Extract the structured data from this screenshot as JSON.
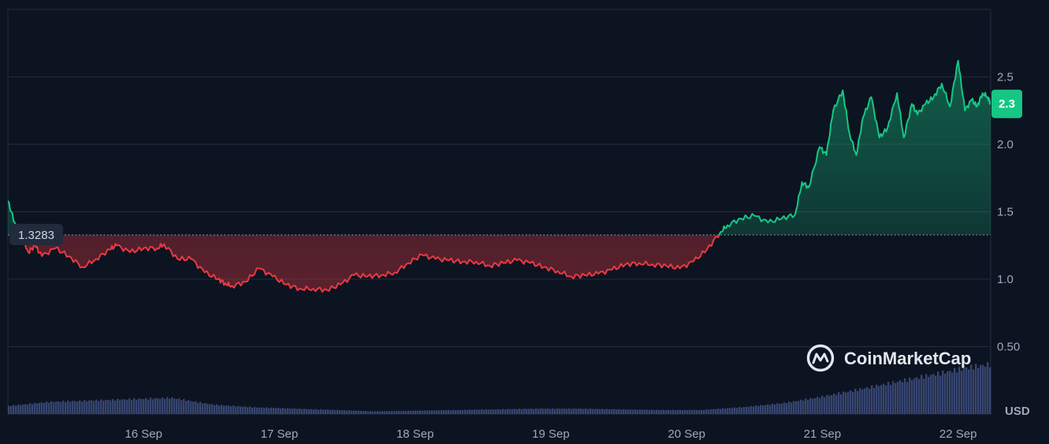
{
  "watermark": {
    "label": "CoinMarketCap"
  },
  "currency_label": "USD",
  "chart_data": {
    "type": "area",
    "y_ticks": [
      {
        "value": 0.5,
        "label": "0.50"
      },
      {
        "value": 1.0,
        "label": "1.0"
      },
      {
        "value": 1.5,
        "label": "1.5"
      },
      {
        "value": 2.0,
        "label": "2.0"
      },
      {
        "value": 2.5,
        "label": "2.5"
      }
    ],
    "x_ticks": [
      {
        "value": 1.0,
        "label": "16 Sep"
      },
      {
        "value": 2.0,
        "label": "17 Sep"
      },
      {
        "value": 3.0,
        "label": "18 Sep"
      },
      {
        "value": 4.0,
        "label": "19 Sep"
      },
      {
        "value": 5.0,
        "label": "20 Sep"
      },
      {
        "value": 6.0,
        "label": "21 Sep"
      },
      {
        "value": 7.0,
        "label": "22 Sep"
      }
    ],
    "ylim": [
      0.0,
      3.0
    ],
    "xlim": [
      0.0,
      7.24
    ],
    "baseline": {
      "value": 1.3283,
      "label": "1.3283"
    },
    "last_price": {
      "value": 2.3,
      "label": "2.3"
    },
    "colors": {
      "up": "#16c784",
      "down": "#ea3943",
      "volume": "#3b4a7a",
      "grid": "#232b3e",
      "badge_up": "#16c784"
    },
    "price": {
      "x": [
        0.0,
        0.05,
        0.1,
        0.15,
        0.2,
        0.25,
        0.35,
        0.45,
        0.55,
        0.65,
        0.75,
        0.8,
        0.9,
        1.0,
        1.1,
        1.15,
        1.25,
        1.35,
        1.45,
        1.55,
        1.6,
        1.65,
        1.75,
        1.85,
        1.95,
        2.05,
        2.15,
        2.25,
        2.35,
        2.45,
        2.55,
        2.65,
        2.75,
        2.85,
        2.95,
        3.05,
        3.15,
        3.25,
        3.35,
        3.45,
        3.55,
        3.65,
        3.75,
        3.85,
        3.95,
        4.05,
        4.15,
        4.25,
        4.35,
        4.45,
        4.55,
        4.65,
        4.75,
        4.85,
        4.95,
        5.05,
        5.15,
        5.25,
        5.3,
        5.4,
        5.5,
        5.6,
        5.7,
        5.8,
        5.85,
        5.9,
        5.98,
        6.03,
        6.08,
        6.15,
        6.2,
        6.25,
        6.3,
        6.36,
        6.42,
        6.48,
        6.55,
        6.6,
        6.66,
        6.7,
        6.76,
        6.82,
        6.88,
        6.94,
        7.0,
        7.05,
        7.1,
        7.14,
        7.18,
        7.22,
        7.24
      ],
      "y": [
        1.58,
        1.42,
        1.33,
        1.2,
        1.25,
        1.17,
        1.23,
        1.17,
        1.09,
        1.15,
        1.22,
        1.25,
        1.2,
        1.23,
        1.23,
        1.26,
        1.15,
        1.15,
        1.05,
        1.0,
        0.97,
        0.95,
        0.98,
        1.08,
        1.02,
        0.96,
        0.93,
        0.93,
        0.92,
        0.96,
        1.03,
        1.02,
        1.03,
        1.05,
        1.12,
        1.18,
        1.15,
        1.14,
        1.13,
        1.13,
        1.1,
        1.12,
        1.14,
        1.12,
        1.09,
        1.06,
        1.02,
        1.03,
        1.04,
        1.07,
        1.11,
        1.12,
        1.11,
        1.1,
        1.08,
        1.13,
        1.22,
        1.35,
        1.4,
        1.45,
        1.47,
        1.42,
        1.45,
        1.48,
        1.72,
        1.68,
        1.98,
        1.92,
        2.25,
        2.4,
        2.08,
        1.92,
        2.2,
        2.35,
        2.05,
        2.12,
        2.38,
        2.05,
        2.3,
        2.22,
        2.3,
        2.35,
        2.45,
        2.28,
        2.62,
        2.25,
        2.33,
        2.28,
        2.38,
        2.35,
        2.3
      ]
    },
    "volume": {
      "x": [
        0.0,
        0.3,
        0.6,
        0.9,
        1.2,
        1.5,
        1.8,
        2.1,
        2.4,
        2.7,
        3.0,
        3.3,
        3.6,
        3.9,
        4.2,
        4.5,
        4.8,
        5.1,
        5.4,
        5.7,
        6.0,
        6.3,
        6.6,
        6.9,
        7.1,
        7.24
      ],
      "y": [
        0.06,
        0.09,
        0.1,
        0.11,
        0.12,
        0.07,
        0.05,
        0.04,
        0.03,
        0.02,
        0.025,
        0.03,
        0.035,
        0.04,
        0.04,
        0.035,
        0.03,
        0.03,
        0.05,
        0.08,
        0.13,
        0.19,
        0.25,
        0.31,
        0.35,
        0.37
      ]
    }
  }
}
